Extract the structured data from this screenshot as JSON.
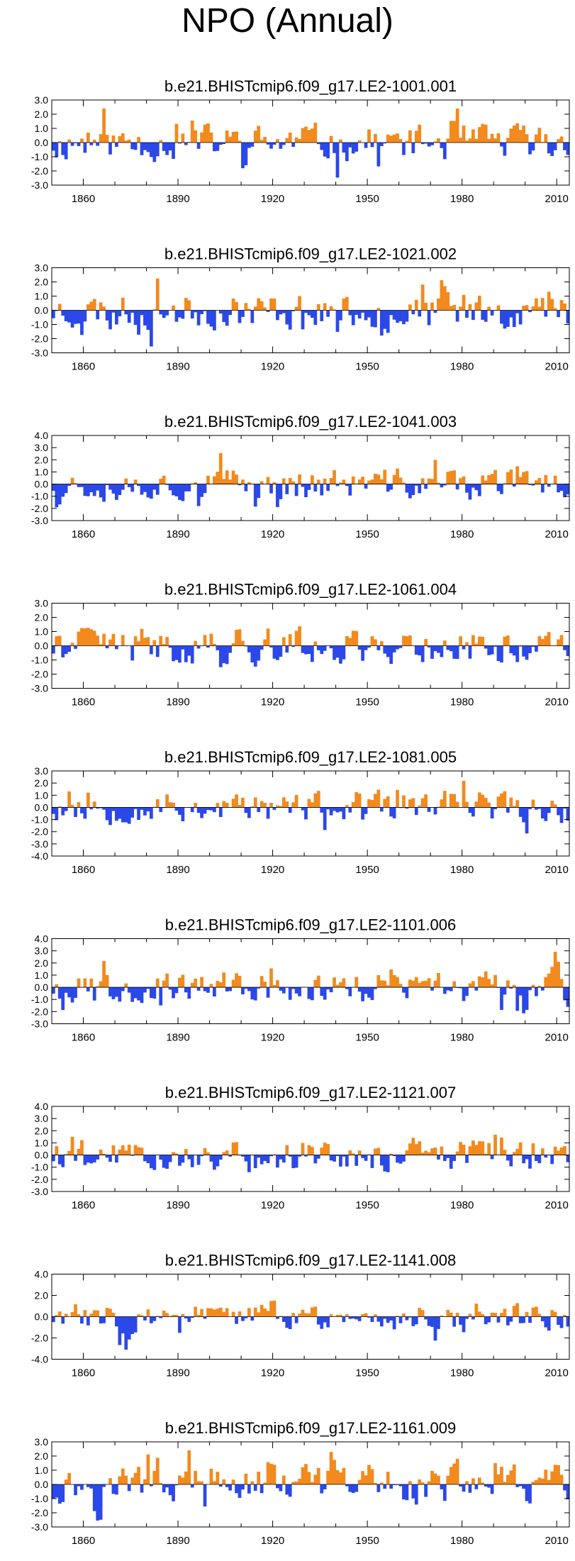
{
  "figure": {
    "title": "NPO (Annual)"
  },
  "colors": {
    "positive": "#f28a1e",
    "negative": "#2b48e8",
    "axis": "#000000"
  },
  "chart_data": [
    {
      "type": "area",
      "title": "b.e21.BHISTcmip6.f09_g17.LE2-1001.001",
      "xlim": [
        1850,
        2014
      ],
      "ylim": [
        -3.0,
        3.0
      ],
      "yticks": [
        -3.0,
        -2.0,
        -1.0,
        0.0,
        1.0,
        2.0,
        3.0
      ],
      "ytick_labels": [
        "-3.0",
        "-2.0",
        "-1.0",
        "0.0",
        "1.0",
        "2.0",
        "3.0"
      ],
      "xticks": [
        1860,
        1890,
        1920,
        1950,
        1980,
        2010
      ],
      "xtick_labels": [
        "1860",
        "1890",
        "1920",
        "1950",
        "1980",
        "2010"
      ],
      "x_start": 1850,
      "seed": 11
    },
    {
      "type": "area",
      "title": "b.e21.BHISTcmip6.f09_g17.LE2-1021.002",
      "xlim": [
        1850,
        2014
      ],
      "ylim": [
        -3.0,
        3.0
      ],
      "yticks": [
        -3.0,
        -2.0,
        -1.0,
        0.0,
        1.0,
        2.0,
        3.0
      ],
      "ytick_labels": [
        "-3.0",
        "-2.0",
        "-1.0",
        "0.0",
        "1.0",
        "2.0",
        "3.0"
      ],
      "xticks": [
        1860,
        1890,
        1920,
        1950,
        1980,
        2010
      ],
      "xtick_labels": [
        "1860",
        "1890",
        "1920",
        "1950",
        "1980",
        "2010"
      ],
      "x_start": 1850,
      "seed": 23
    },
    {
      "type": "area",
      "title": "b.e21.BHISTcmip6.f09_g17.LE2-1041.003",
      "xlim": [
        1850,
        2014
      ],
      "ylim": [
        -3.0,
        4.0
      ],
      "yticks": [
        -3.0,
        -2.0,
        -1.0,
        0.0,
        1.0,
        2.0,
        3.0,
        4.0
      ],
      "ytick_labels": [
        "-3.0",
        "-2.0",
        "-1.0",
        "0.0",
        "1.0",
        "2.0",
        "3.0",
        "4.0"
      ],
      "xticks": [
        1860,
        1890,
        1920,
        1950,
        1980,
        2010
      ],
      "xtick_labels": [
        "1860",
        "1890",
        "1920",
        "1950",
        "1980",
        "2010"
      ],
      "x_start": 1850,
      "seed": 37
    },
    {
      "type": "area",
      "title": "b.e21.BHISTcmip6.f09_g17.LE2-1061.004",
      "xlim": [
        1850,
        2014
      ],
      "ylim": [
        -3.0,
        3.0
      ],
      "yticks": [
        -3.0,
        -2.0,
        -1.0,
        0.0,
        1.0,
        2.0,
        3.0
      ],
      "ytick_labels": [
        "-3.0",
        "-2.0",
        "-1.0",
        "0.0",
        "1.0",
        "2.0",
        "3.0"
      ],
      "xticks": [
        1860,
        1890,
        1920,
        1950,
        1980,
        2010
      ],
      "xtick_labels": [
        "1860",
        "1890",
        "1920",
        "1950",
        "1980",
        "2010"
      ],
      "x_start": 1850,
      "seed": 41
    },
    {
      "type": "area",
      "title": "b.e21.BHISTcmip6.f09_g17.LE2-1081.005",
      "xlim": [
        1850,
        2014
      ],
      "ylim": [
        -4.0,
        3.0
      ],
      "yticks": [
        -4.0,
        -3.0,
        -2.0,
        -1.0,
        0.0,
        1.0,
        2.0,
        3.0
      ],
      "ytick_labels": [
        "-4.0",
        "-3.0",
        "-2.0",
        "-1.0",
        "0.0",
        "1.0",
        "2.0",
        "3.0"
      ],
      "xticks": [
        1860,
        1890,
        1920,
        1950,
        1980,
        2010
      ],
      "xtick_labels": [
        "1860",
        "1890",
        "1920",
        "1950",
        "1980",
        "2010"
      ],
      "x_start": 1850,
      "seed": 53
    },
    {
      "type": "area",
      "title": "b.e21.BHISTcmip6.f09_g17.LE2-1101.006",
      "xlim": [
        1850,
        2014
      ],
      "ylim": [
        -3.0,
        4.0
      ],
      "yticks": [
        -3.0,
        -2.0,
        -1.0,
        0.0,
        1.0,
        2.0,
        3.0,
        4.0
      ],
      "ytick_labels": [
        "-3.0",
        "-2.0",
        "-1.0",
        "0.0",
        "1.0",
        "2.0",
        "3.0",
        "4.0"
      ],
      "xticks": [
        1860,
        1890,
        1920,
        1950,
        1980,
        2010
      ],
      "xtick_labels": [
        "1860",
        "1890",
        "1920",
        "1950",
        "1980",
        "2010"
      ],
      "x_start": 1850,
      "seed": 67
    },
    {
      "type": "area",
      "title": "b.e21.BHISTcmip6.f09_g17.LE2-1121.007",
      "xlim": [
        1850,
        2014
      ],
      "ylim": [
        -3.0,
        4.0
      ],
      "yticks": [
        -3.0,
        -2.0,
        -1.0,
        0.0,
        1.0,
        2.0,
        3.0,
        4.0
      ],
      "ytick_labels": [
        "-3.0",
        "-2.0",
        "-1.0",
        "0.0",
        "1.0",
        "2.0",
        "3.0",
        "4.0"
      ],
      "xticks": [
        1860,
        1890,
        1920,
        1950,
        1980,
        2010
      ],
      "xtick_labels": [
        "1860",
        "1890",
        "1920",
        "1950",
        "1980",
        "2010"
      ],
      "x_start": 1850,
      "seed": 79
    },
    {
      "type": "area",
      "title": "b.e21.BHISTcmip6.f09_g17.LE2-1141.008",
      "xlim": [
        1850,
        2014
      ],
      "ylim": [
        -4.0,
        4.0
      ],
      "yticks": [
        -4.0,
        -2.0,
        0.0,
        2.0,
        4.0
      ],
      "ytick_labels": [
        "-4.0",
        "-2.0",
        "0.0",
        "2.0",
        "4.0"
      ],
      "xticks": [
        1860,
        1890,
        1920,
        1950,
        1980,
        2010
      ],
      "xtick_labels": [
        "1860",
        "1890",
        "1920",
        "1950",
        "1980",
        "2010"
      ],
      "x_start": 1850,
      "seed": 83
    },
    {
      "type": "area",
      "title": "b.e21.BHISTcmip6.f09_g17.LE2-1161.009",
      "xlim": [
        1850,
        2014
      ],
      "ylim": [
        -3.0,
        3.0
      ],
      "yticks": [
        -3.0,
        -2.0,
        -1.0,
        0.0,
        1.0,
        2.0,
        3.0
      ],
      "ytick_labels": [
        "-3.0",
        "-2.0",
        "-1.0",
        "0.0",
        "1.0",
        "2.0",
        "3.0"
      ],
      "xticks": [
        1860,
        1890,
        1920,
        1950,
        1980,
        2010
      ],
      "xtick_labels": [
        "1860",
        "1890",
        "1920",
        "1950",
        "1980",
        "2010"
      ],
      "x_start": 1850,
      "seed": 97
    }
  ]
}
